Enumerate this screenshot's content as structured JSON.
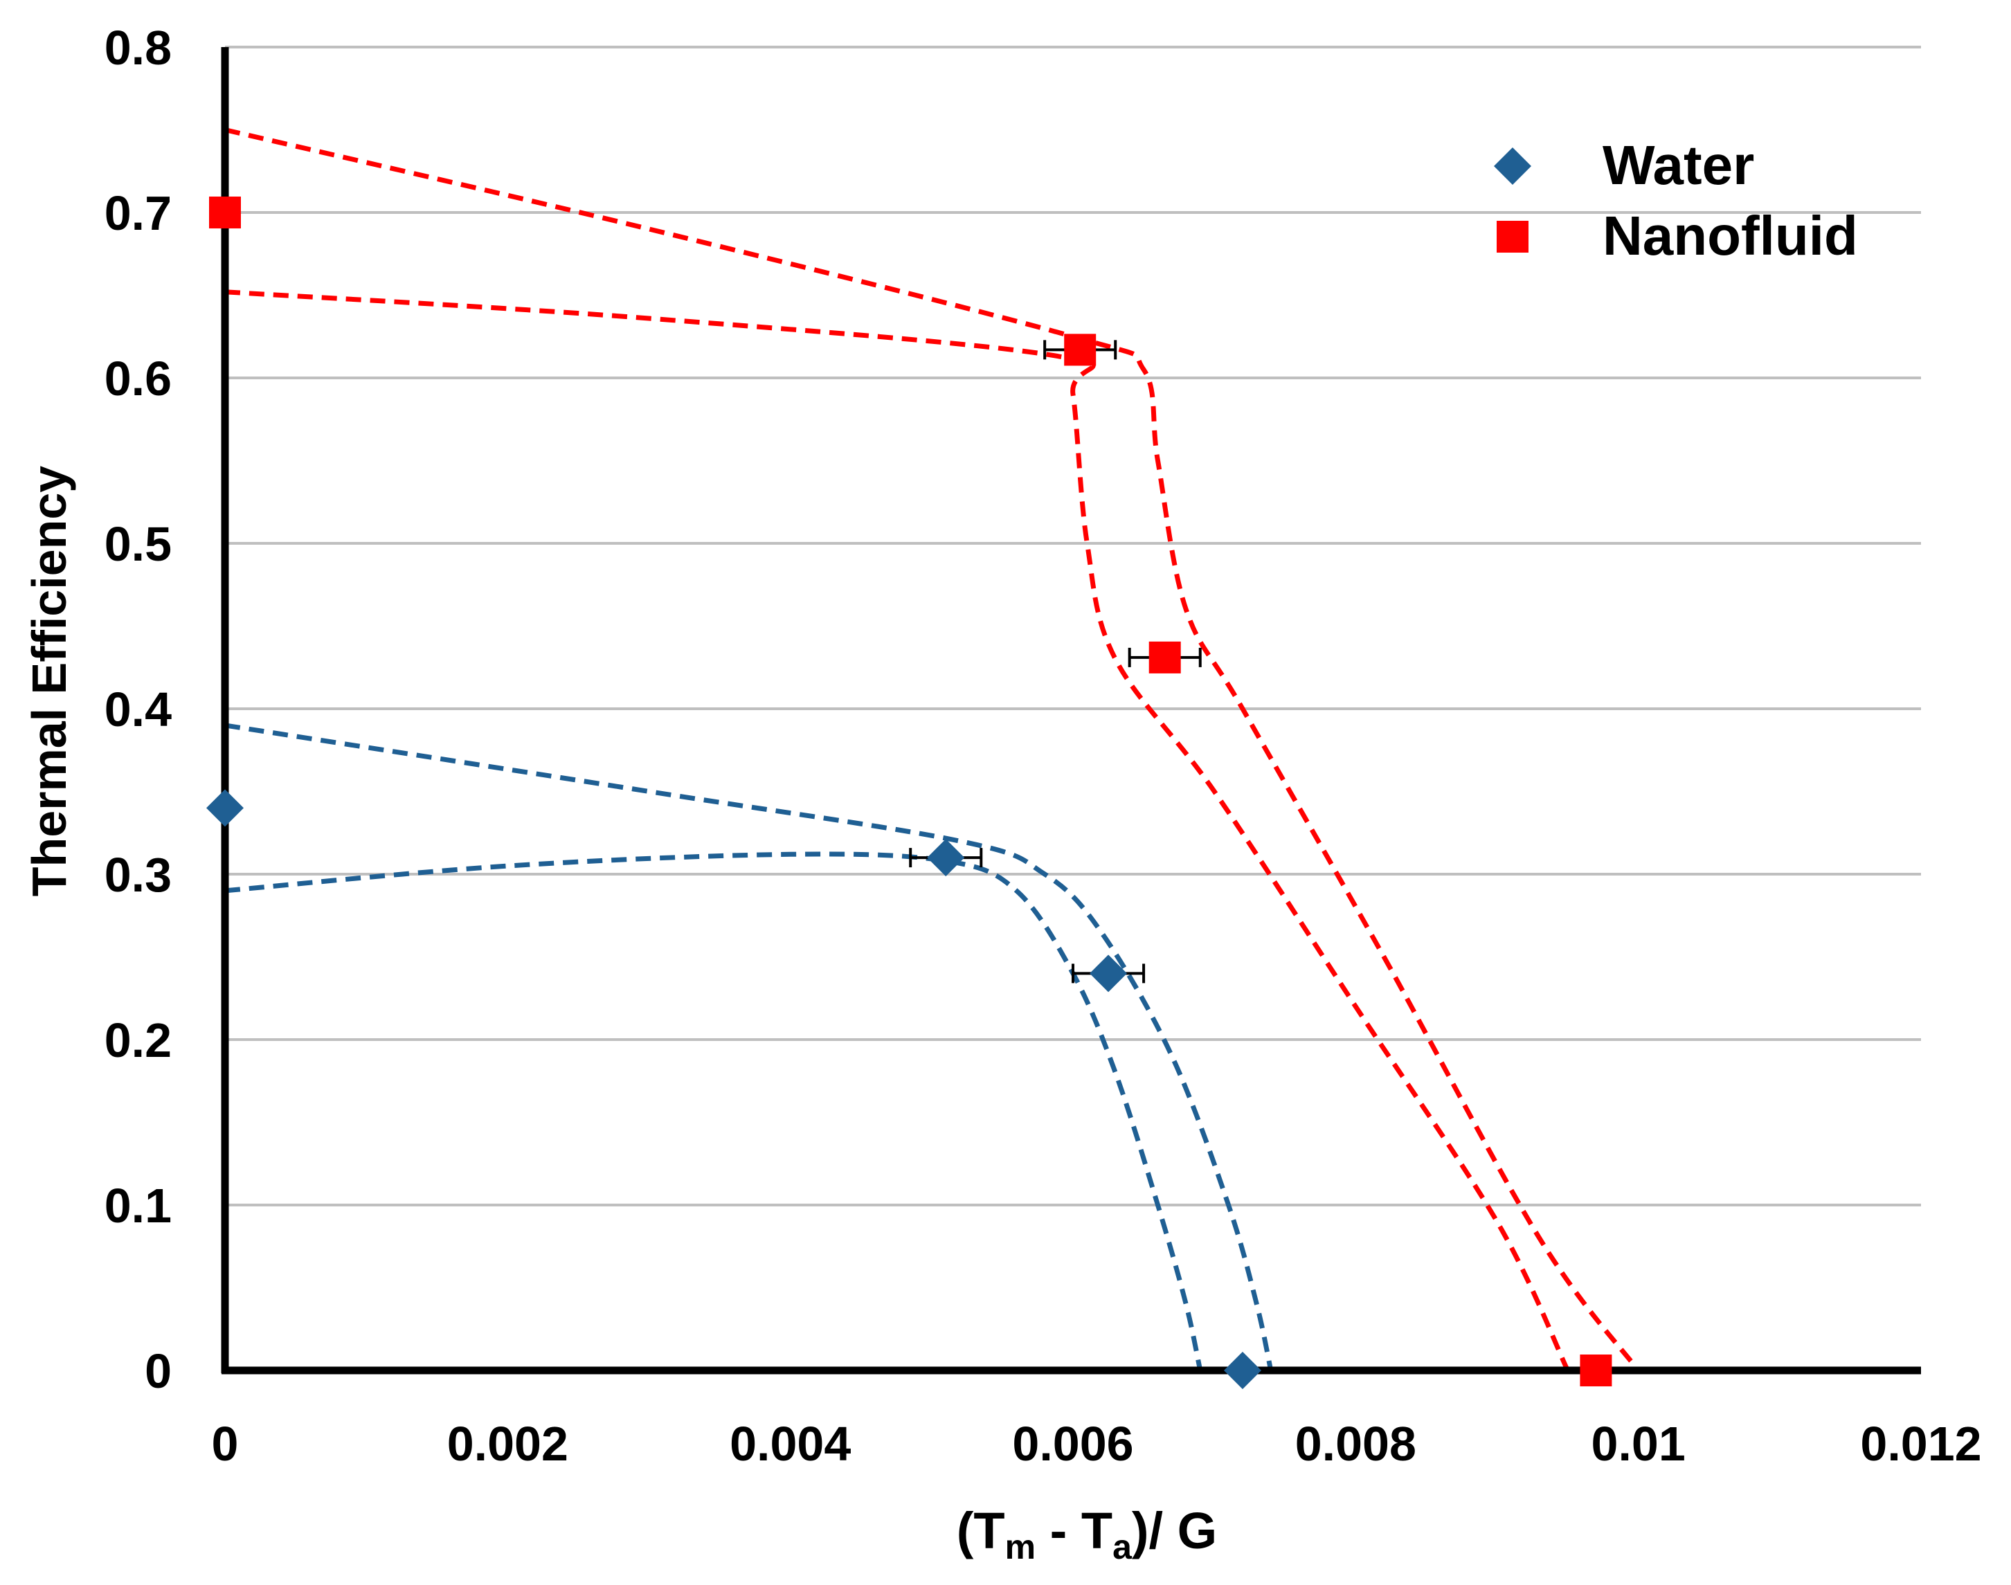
{
  "chart_data": {
    "type": "scatter",
    "title": "",
    "xlabel": {
      "parts": [
        {
          "text": "(T",
          "sub": false
        },
        {
          "text": "m",
          "sub": true
        },
        {
          "text": " - T",
          "sub": false
        },
        {
          "text": "a",
          "sub": true
        },
        {
          "text": ")/ G",
          "sub": false
        }
      ]
    },
    "ylabel": "Thermal Efficiency",
    "xlim": [
      0,
      0.012
    ],
    "ylim": [
      0,
      0.8
    ],
    "xticks": [
      {
        "value": 0,
        "label": "0"
      },
      {
        "value": 0.002,
        "label": "0.002"
      },
      {
        "value": 0.004,
        "label": "0.004"
      },
      {
        "value": 0.006,
        "label": "0.006"
      },
      {
        "value": 0.008,
        "label": "0.008"
      },
      {
        "value": 0.01,
        "label": "0.01"
      },
      {
        "value": 0.012,
        "label": "0.012"
      }
    ],
    "yticks": [
      {
        "value": 0,
        "label": "0"
      },
      {
        "value": 0.1,
        "label": "0.1"
      },
      {
        "value": 0.2,
        "label": "0.2"
      },
      {
        "value": 0.3,
        "label": "0.3"
      },
      {
        "value": 0.4,
        "label": "0.4"
      },
      {
        "value": 0.5,
        "label": "0.5"
      },
      {
        "value": 0.6,
        "label": "0.6"
      },
      {
        "value": 0.7,
        "label": "0.7"
      },
      {
        "value": 0.8,
        "label": "0.8"
      }
    ],
    "grid": "horizontal",
    "legend_position": "top-right",
    "series": [
      {
        "name": "Water",
        "marker": "diamond",
        "color": "#1F5F93",
        "points": [
          {
            "x": 0.0,
            "y": 0.34
          },
          {
            "x": 0.0051,
            "y": 0.31,
            "xerr": 0.00025
          },
          {
            "x": 0.00625,
            "y": 0.24,
            "xerr": 0.00025
          },
          {
            "x": 0.0072,
            "y": 0.0
          }
        ],
        "bounds": [
          {
            "name": "upper",
            "points": [
              [
                0,
                0.39
              ],
              [
                0.003,
                0.35
              ],
              [
                0.0052,
                0.32
              ],
              [
                0.0058,
                0.3
              ],
              [
                0.0062,
                0.265
              ],
              [
                0.0067,
                0.19
              ],
              [
                0.0071,
                0.1
              ],
              [
                0.0073,
                0.04
              ],
              [
                0.0074,
                0.0
              ]
            ]
          },
          {
            "name": "lower",
            "points": [
              [
                0,
                0.29
              ],
              [
                0.002,
                0.305
              ],
              [
                0.004,
                0.312
              ],
              [
                0.0051,
                0.308
              ],
              [
                0.0056,
                0.29
              ],
              [
                0.006,
                0.24
              ],
              [
                0.0063,
                0.18
              ],
              [
                0.0066,
                0.1
              ],
              [
                0.0068,
                0.04
              ],
              [
                0.0069,
                0.0
              ]
            ]
          }
        ]
      },
      {
        "name": "Nanofluid",
        "marker": "square",
        "color": "#FF0000",
        "points": [
          {
            "x": 0.0,
            "y": 0.7
          },
          {
            "x": 0.00605,
            "y": 0.617,
            "xerr": 0.00025
          },
          {
            "x": 0.00665,
            "y": 0.431,
            "xerr": 0.00025
          },
          {
            "x": 0.0097,
            "y": 0.0
          }
        ],
        "bounds": [
          {
            "name": "upper",
            "points": [
              [
                0,
                0.75
              ],
              [
                0.003,
                0.69
              ],
              [
                0.006,
                0.625
              ],
              [
                0.0065,
                0.605
              ],
              [
                0.0066,
                0.55
              ],
              [
                0.0068,
                0.46
              ],
              [
                0.0072,
                0.4
              ],
              [
                0.0082,
                0.25
              ],
              [
                0.0093,
                0.08
              ],
              [
                0.01,
                0.0
              ]
            ]
          },
          {
            "name": "lower",
            "points": [
              [
                0,
                0.652
              ],
              [
                0.003,
                0.636
              ],
              [
                0.0059,
                0.613
              ],
              [
                0.006,
                0.59
              ],
              [
                0.0061,
                0.5
              ],
              [
                0.0063,
                0.43
              ],
              [
                0.007,
                0.35
              ],
              [
                0.008,
                0.22
              ],
              [
                0.009,
                0.09
              ],
              [
                0.0095,
                0.0
              ]
            ]
          }
        ]
      }
    ]
  }
}
